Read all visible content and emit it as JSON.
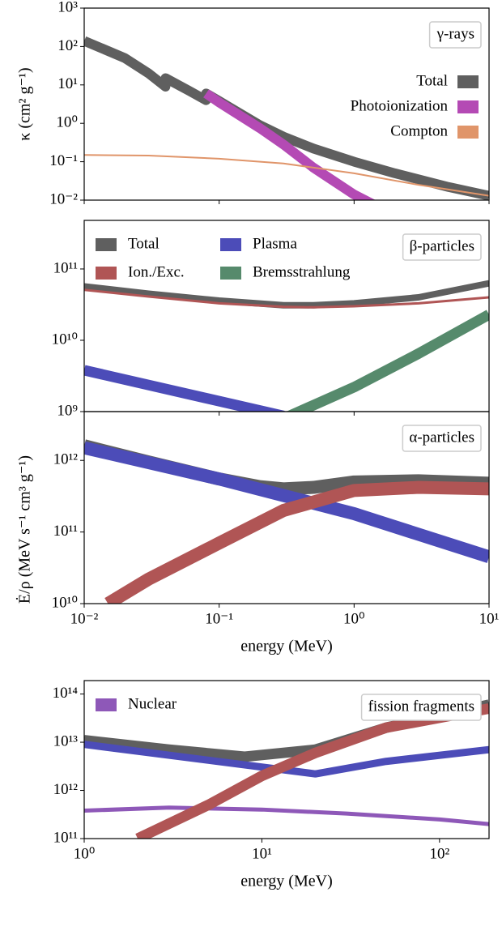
{
  "chart_data": [
    {
      "type": "line",
      "annotation": "γ-rays",
      "ylabel": "κ (cm² g⁻¹)",
      "xscale": "log",
      "yscale": "log",
      "legend": "right",
      "xlim": [
        0.01,
        10
      ],
      "ylim": [
        0.01,
        1000
      ],
      "yticks": [
        {
          "value": 0.01,
          "label": "10⁻²"
        },
        {
          "value": 0.1,
          "label": "10⁻¹"
        },
        {
          "value": 1,
          "label": "10⁰"
        },
        {
          "value": 10,
          "label": "10¹"
        },
        {
          "value": 100,
          "label": "10²"
        },
        {
          "value": 1000,
          "label": "10³"
        }
      ],
      "series": [
        {
          "name": "Total",
          "color": "#5f5f5f",
          "linewidth": 12,
          "x": [
            0.01,
            0.02,
            0.03,
            0.04,
            0.0401,
            0.06,
            0.08,
            0.0801,
            0.1,
            0.2,
            0.3,
            0.5,
            1,
            2,
            5,
            10
          ],
          "values": [
            140,
            50,
            20,
            9,
            15,
            7,
            4,
            6,
            3.8,
            0.9,
            0.45,
            0.22,
            0.1,
            0.05,
            0.022,
            0.013
          ]
        },
        {
          "name": "Photoionization",
          "color": "#b44ab4",
          "linewidth": 12,
          "x": [
            0.08,
            0.1,
            0.2,
            0.3,
            0.5,
            1,
            1.6
          ],
          "values": [
            6,
            3.5,
            0.75,
            0.28,
            0.07,
            0.014,
            0.006
          ]
        },
        {
          "name": "Compton",
          "color": "#e0956a",
          "linewidth": 2,
          "x": [
            0.01,
            0.03,
            0.1,
            0.3,
            1,
            3,
            10
          ],
          "values": [
            0.15,
            0.145,
            0.12,
            0.09,
            0.05,
            0.025,
            0.013
          ]
        }
      ]
    },
    {
      "type": "line",
      "annotation": "β-particles",
      "xscale": "log",
      "yscale": "log",
      "legend": "upper left",
      "xlim": [
        0.01,
        10
      ],
      "ylim": [
        1000000000,
        480000000000
      ],
      "yticks": [
        {
          "value": 1000000000,
          "label": "10⁹"
        },
        {
          "value": 10000000000,
          "label": "10¹⁰"
        },
        {
          "value": 100000000000,
          "label": "10¹¹"
        }
      ],
      "series": [
        {
          "name": "Total",
          "color": "#5f5f5f",
          "linewidth": 8,
          "x": [
            0.01,
            0.03,
            0.1,
            0.3,
            0.5,
            1,
            3,
            10
          ],
          "values": [
            57000000000,
            45000000000,
            36000000000,
            31000000000,
            31000000000,
            33000000000,
            40000000000,
            63000000000
          ]
        },
        {
          "name": "Ion./Exc.",
          "color": "#b05555",
          "linewidth": 3,
          "x": [
            0.01,
            0.03,
            0.1,
            0.3,
            0.5,
            1,
            3,
            10
          ],
          "values": [
            51000000000,
            41000000000,
            33000000000,
            29500000000,
            29000000000,
            30000000000,
            33000000000,
            40000000000
          ]
        },
        {
          "name": "Plasma",
          "color": "#4c4cb8",
          "linewidth": 13,
          "x": [
            0.01,
            0.3
          ],
          "values": [
            3800000000,
            870000000
          ]
        },
        {
          "name": "Bremsstrahlung",
          "color": "#568a6c",
          "linewidth": 13,
          "x": [
            0.3,
            1,
            3,
            10
          ],
          "values": [
            800000000,
            2200000000,
            6500000000,
            23000000000
          ]
        }
      ]
    },
    {
      "type": "line",
      "annotation": "α-particles",
      "ylabel": "Ė/ρ (MeV s⁻¹ cm³ g⁻¹)",
      "xlabel": "energy (MeV)",
      "xscale": "log",
      "yscale": "log",
      "xlim": [
        0.01,
        10
      ],
      "ylim": [
        10000000000,
        4800000000000
      ],
      "xticks": [
        {
          "value": 0.01,
          "label": "10⁻²"
        },
        {
          "value": 0.1,
          "label": "10⁻¹"
        },
        {
          "value": 1,
          "label": "10⁰"
        },
        {
          "value": 10,
          "label": "10¹"
        }
      ],
      "yticks": [
        {
          "value": 10000000000,
          "label": "10¹⁰"
        },
        {
          "value": 100000000000,
          "label": "10¹¹"
        },
        {
          "value": 1000000000000,
          "label": "10¹²"
        }
      ],
      "series": [
        {
          "color": "#5f5f5f",
          "linewidth": 16,
          "x": [
            0.01,
            0.03,
            0.1,
            0.2,
            0.3,
            0.5,
            1,
            3,
            10
          ],
          "values": [
            1600000000000,
            950000000000,
            550000000000,
            430000000000,
            400000000000,
            420000000000,
            500000000000,
            520000000000,
            480000000000
          ]
        },
        {
          "color": "#4c4cb8",
          "linewidth": 16,
          "x": [
            0.01,
            0.1,
            1,
            10
          ],
          "values": [
            1500000000000,
            550000000000,
            180000000000,
            45000000000
          ]
        },
        {
          "color": "#b05555",
          "linewidth": 16,
          "x": [
            0.015,
            0.03,
            0.1,
            0.3,
            1,
            3,
            10
          ],
          "values": [
            10000000000,
            22000000000,
            70000000000,
            200000000000,
            380000000000,
            420000000000,
            400000000000
          ]
        }
      ]
    },
    {
      "type": "line",
      "annotation": "fission fragments",
      "xlabel": "energy (MeV)",
      "xscale": "log",
      "yscale": "log",
      "legend": "upper left",
      "xlim": [
        1,
        190
      ],
      "ylim": [
        100000000000,
        190000000000000
      ],
      "xticks": [
        {
          "value": 1,
          "label": "10⁰"
        },
        {
          "value": 10,
          "label": "10¹"
        },
        {
          "value": 100,
          "label": "10²"
        }
      ],
      "yticks": [
        {
          "value": 100000000000,
          "label": "10¹¹"
        },
        {
          "value": 1000000000000,
          "label": "10¹²"
        },
        {
          "value": 10000000000000,
          "label": "10¹³"
        },
        {
          "value": 100000000000000,
          "label": "10¹⁴"
        }
      ],
      "series": [
        {
          "name": "Nuclear",
          "color": "#8e58b8",
          "linewidth": 5,
          "x": [
            1,
            3,
            10,
            30,
            100,
            190
          ],
          "values": [
            380000000000,
            440000000000,
            400000000000,
            330000000000,
            250000000000,
            200000000000
          ]
        },
        {
          "color": "#5f5f5f",
          "linewidth": 13,
          "x": [
            1,
            3,
            8,
            20,
            50,
            190
          ],
          "values": [
            11000000000000,
            7000000000000,
            5000000000000,
            7000000000000,
            20000000000000,
            60000000000000
          ]
        },
        {
          "color": "#4c4cb8",
          "linewidth": 9,
          "x": [
            1,
            20,
            50,
            190
          ],
          "values": [
            9000000000000,
            2200000000000,
            4000000000000,
            7000000000000
          ]
        },
        {
          "color": "#b05555",
          "linewidth": 13,
          "x": [
            2,
            5,
            10,
            20,
            50,
            190
          ],
          "values": [
            100000000000,
            500000000000,
            2000000000000,
            6000000000000,
            20000000000000,
            50000000000000
          ]
        }
      ]
    }
  ]
}
